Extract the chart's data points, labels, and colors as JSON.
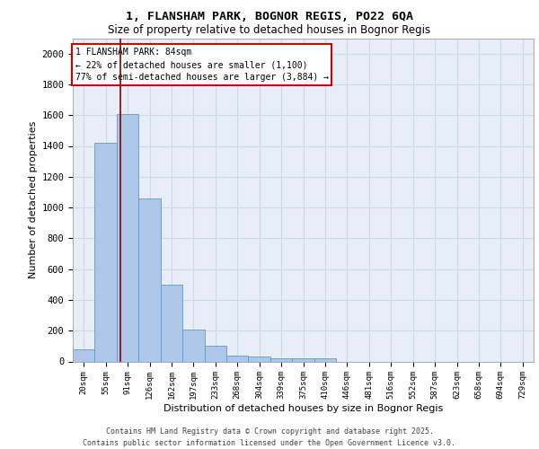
{
  "title1": "1, FLANSHAM PARK, BOGNOR REGIS, PO22 6QA",
  "title2": "Size of property relative to detached houses in Bognor Regis",
  "xlabel": "Distribution of detached houses by size in Bognor Regis",
  "ylabel": "Number of detached properties",
  "categories": [
    "20sqm",
    "55sqm",
    "91sqm",
    "126sqm",
    "162sqm",
    "197sqm",
    "233sqm",
    "268sqm",
    "304sqm",
    "339sqm",
    "375sqm",
    "410sqm",
    "446sqm",
    "481sqm",
    "516sqm",
    "552sqm",
    "587sqm",
    "623sqm",
    "658sqm",
    "694sqm",
    "729sqm"
  ],
  "values": [
    80,
    1420,
    1610,
    1060,
    500,
    205,
    105,
    40,
    30,
    20,
    20,
    20,
    0,
    0,
    0,
    0,
    0,
    0,
    0,
    0,
    0
  ],
  "bar_color": "#aec6e8",
  "bar_edge_color": "#5b9bd5",
  "grid_color": "#d0d8e8",
  "background_color": "#e8eef8",
  "red_line_x": 1.65,
  "annotation_title": "1 FLANSHAM PARK: 84sqm",
  "annotation_line2": "← 22% of detached houses are smaller (1,100)",
  "annotation_line3": "77% of semi-detached houses are larger (3,884) →",
  "annotation_box_color": "#cc0000",
  "ylim": [
    0,
    2100
  ],
  "yticks": [
    0,
    200,
    400,
    600,
    800,
    1000,
    1200,
    1400,
    1600,
    1800,
    2000
  ],
  "footer1": "Contains HM Land Registry data © Crown copyright and database right 2025.",
  "footer2": "Contains public sector information licensed under the Open Government Licence v3.0."
}
